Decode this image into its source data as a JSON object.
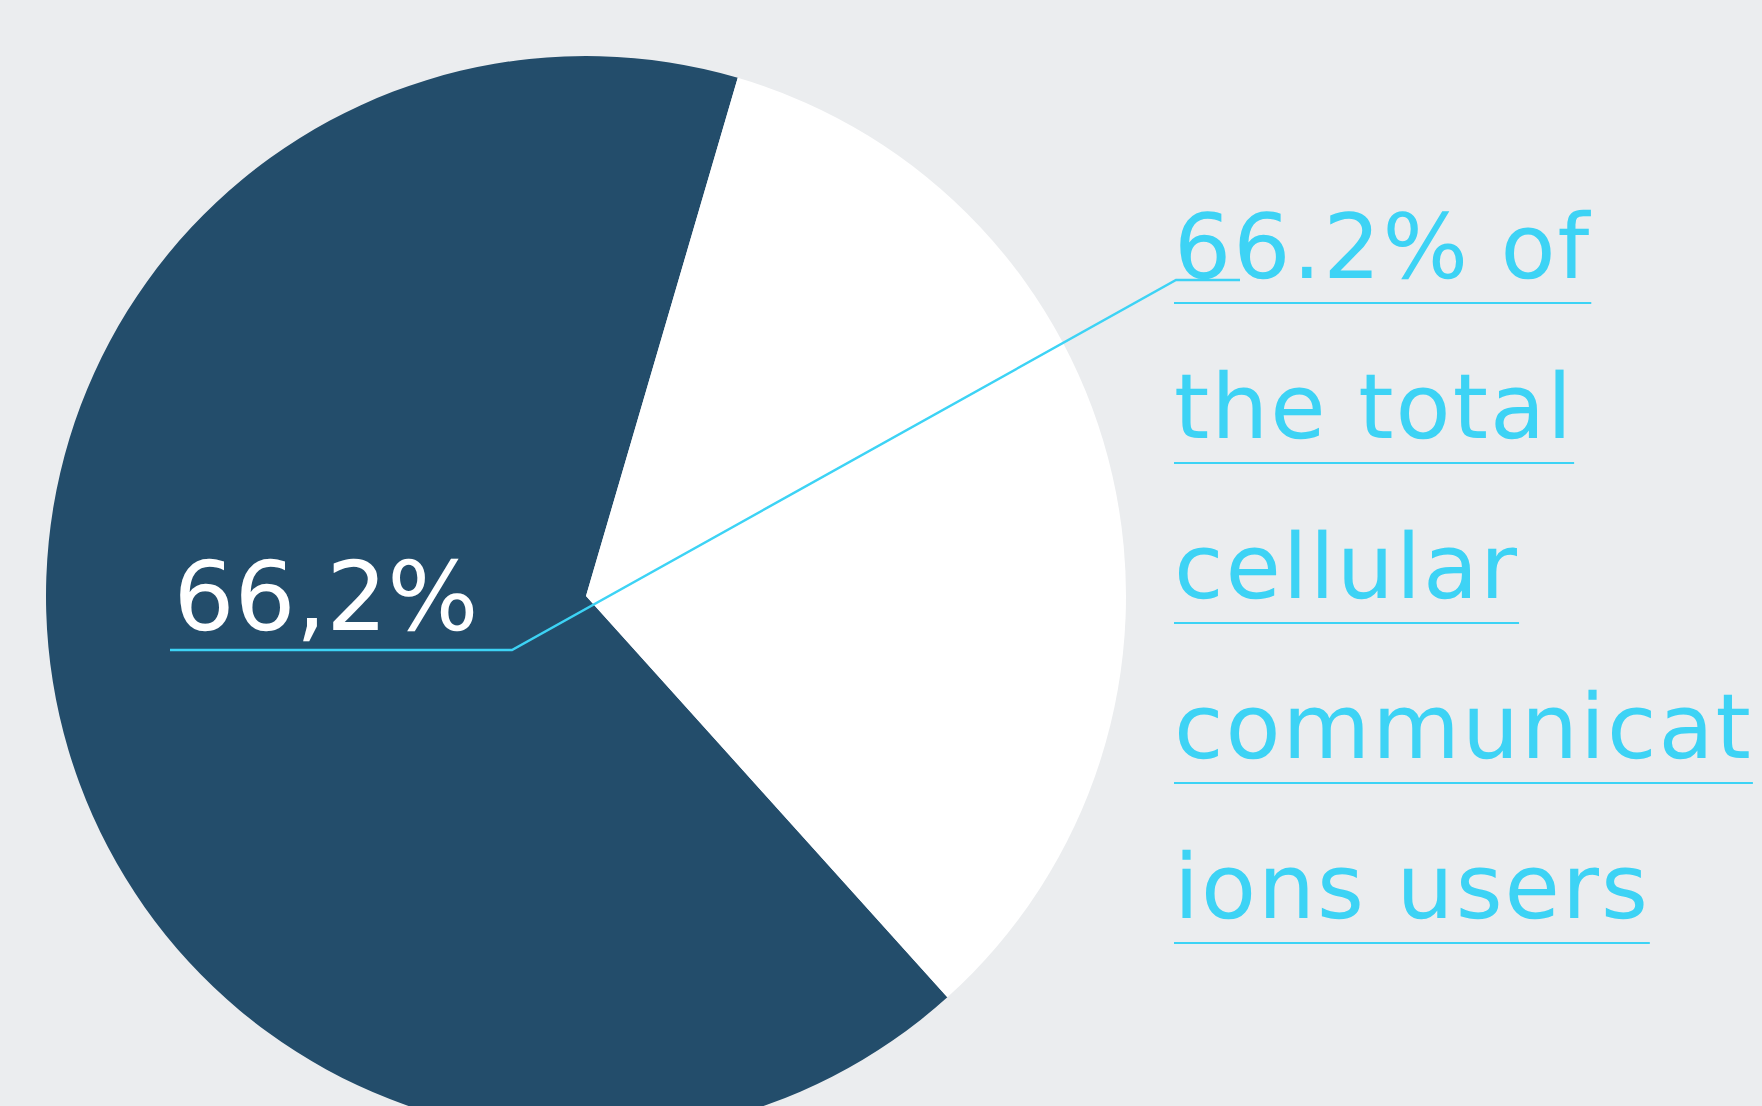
{
  "chart_data": {
    "type": "pie",
    "categories": [
      null,
      null
    ],
    "values": [
      66.2,
      33.8
    ],
    "colors": [
      "#234d6b",
      "#ffffff"
    ],
    "value_labels": [
      "66,2%",
      null
    ],
    "annotations": [
      "66.2% of the total cellular communications users"
    ]
  }
}
